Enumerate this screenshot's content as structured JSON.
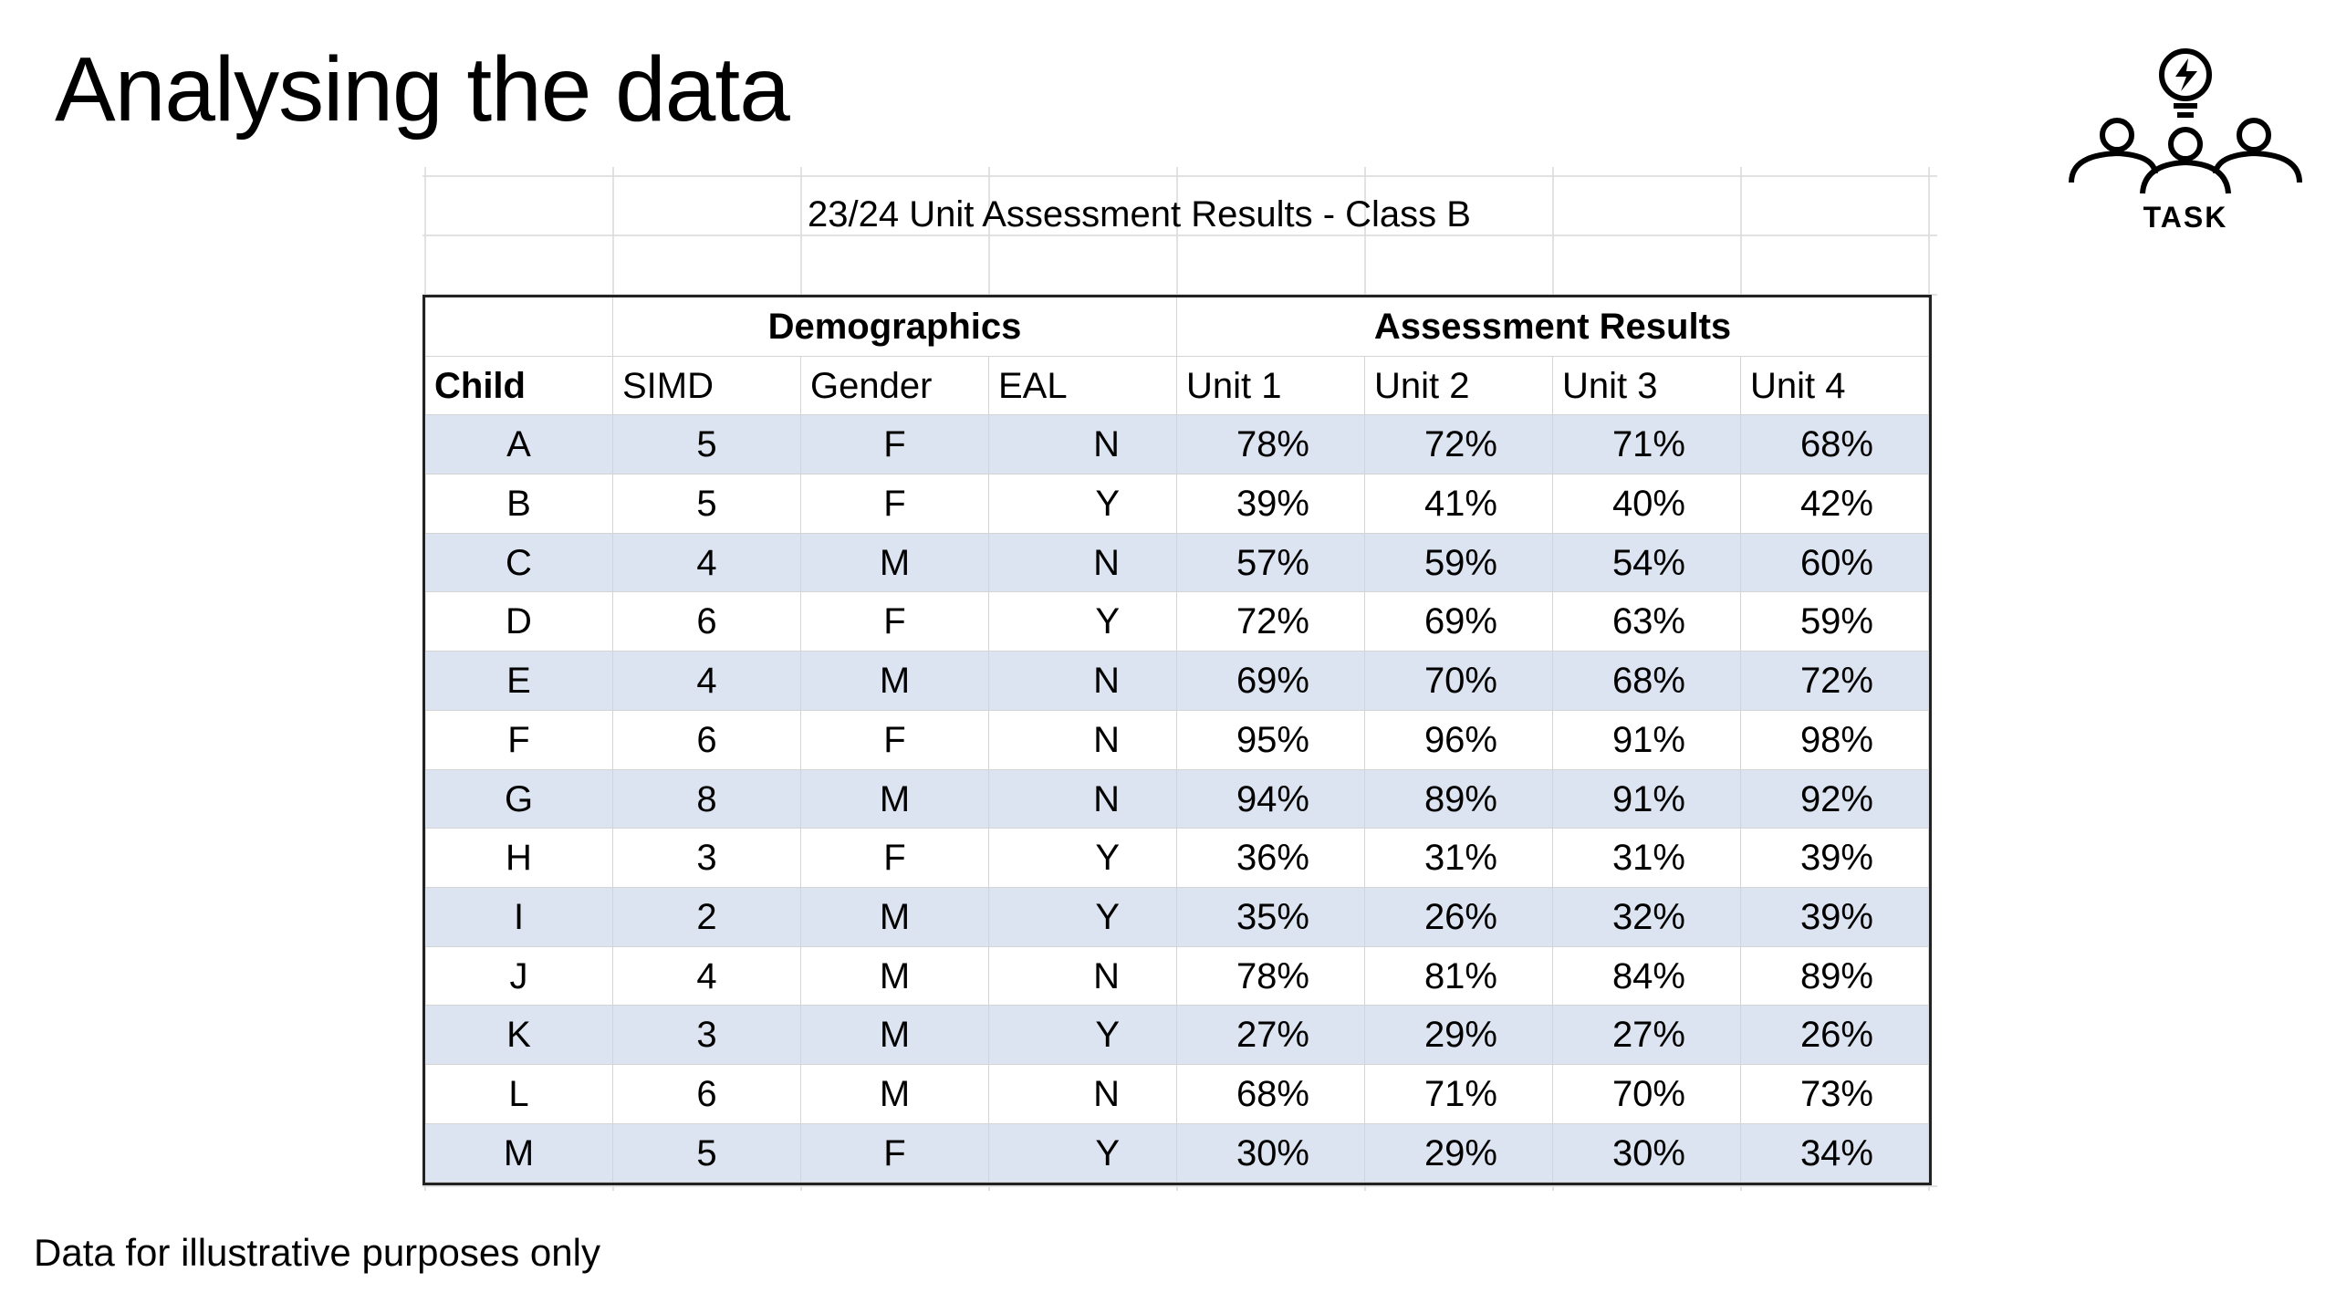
{
  "slide": {
    "title": "Analysing the data",
    "footnote": "Data for illustrative purposes only"
  },
  "task_badge": {
    "label": "TASK",
    "icon": "lightbulb-people-icon"
  },
  "sheet": {
    "title": "23/24 Unit Assessment Results - Class B",
    "group_headers": [
      "",
      "Demographics",
      "Assessment Results"
    ],
    "columns": [
      "Child",
      "SIMD",
      "Gender",
      "EAL",
      "Unit 1",
      "Unit 2",
      "Unit 3",
      "Unit 4"
    ],
    "rows": [
      [
        "A",
        "5",
        "F",
        "N",
        "78%",
        "72%",
        "71%",
        "68%"
      ],
      [
        "B",
        "5",
        "F",
        "Y",
        "39%",
        "41%",
        "40%",
        "42%"
      ],
      [
        "C",
        "4",
        "M",
        "N",
        "57%",
        "59%",
        "54%",
        "60%"
      ],
      [
        "D",
        "6",
        "F",
        "Y",
        "72%",
        "69%",
        "63%",
        "59%"
      ],
      [
        "E",
        "4",
        "M",
        "N",
        "69%",
        "70%",
        "68%",
        "72%"
      ],
      [
        "F",
        "6",
        "F",
        "N",
        "95%",
        "96%",
        "91%",
        "98%"
      ],
      [
        "G",
        "8",
        "M",
        "N",
        "94%",
        "89%",
        "91%",
        "92%"
      ],
      [
        "H",
        "3",
        "F",
        "Y",
        "36%",
        "31%",
        "31%",
        "39%"
      ],
      [
        "I",
        "2",
        "M",
        "Y",
        "35%",
        "26%",
        "32%",
        "39%"
      ],
      [
        "J",
        "4",
        "M",
        "N",
        "78%",
        "81%",
        "84%",
        "89%"
      ],
      [
        "K",
        "3",
        "M",
        "Y",
        "27%",
        "29%",
        "27%",
        "26%"
      ],
      [
        "L",
        "6",
        "M",
        "N",
        "68%",
        "71%",
        "70%",
        "73%"
      ],
      [
        "M",
        "5",
        "F",
        "Y",
        "30%",
        "29%",
        "30%",
        "34%"
      ]
    ],
    "colors": {
      "band": "#dce3f1",
      "gridline": "#d4d4d4",
      "border": "#222222"
    }
  }
}
